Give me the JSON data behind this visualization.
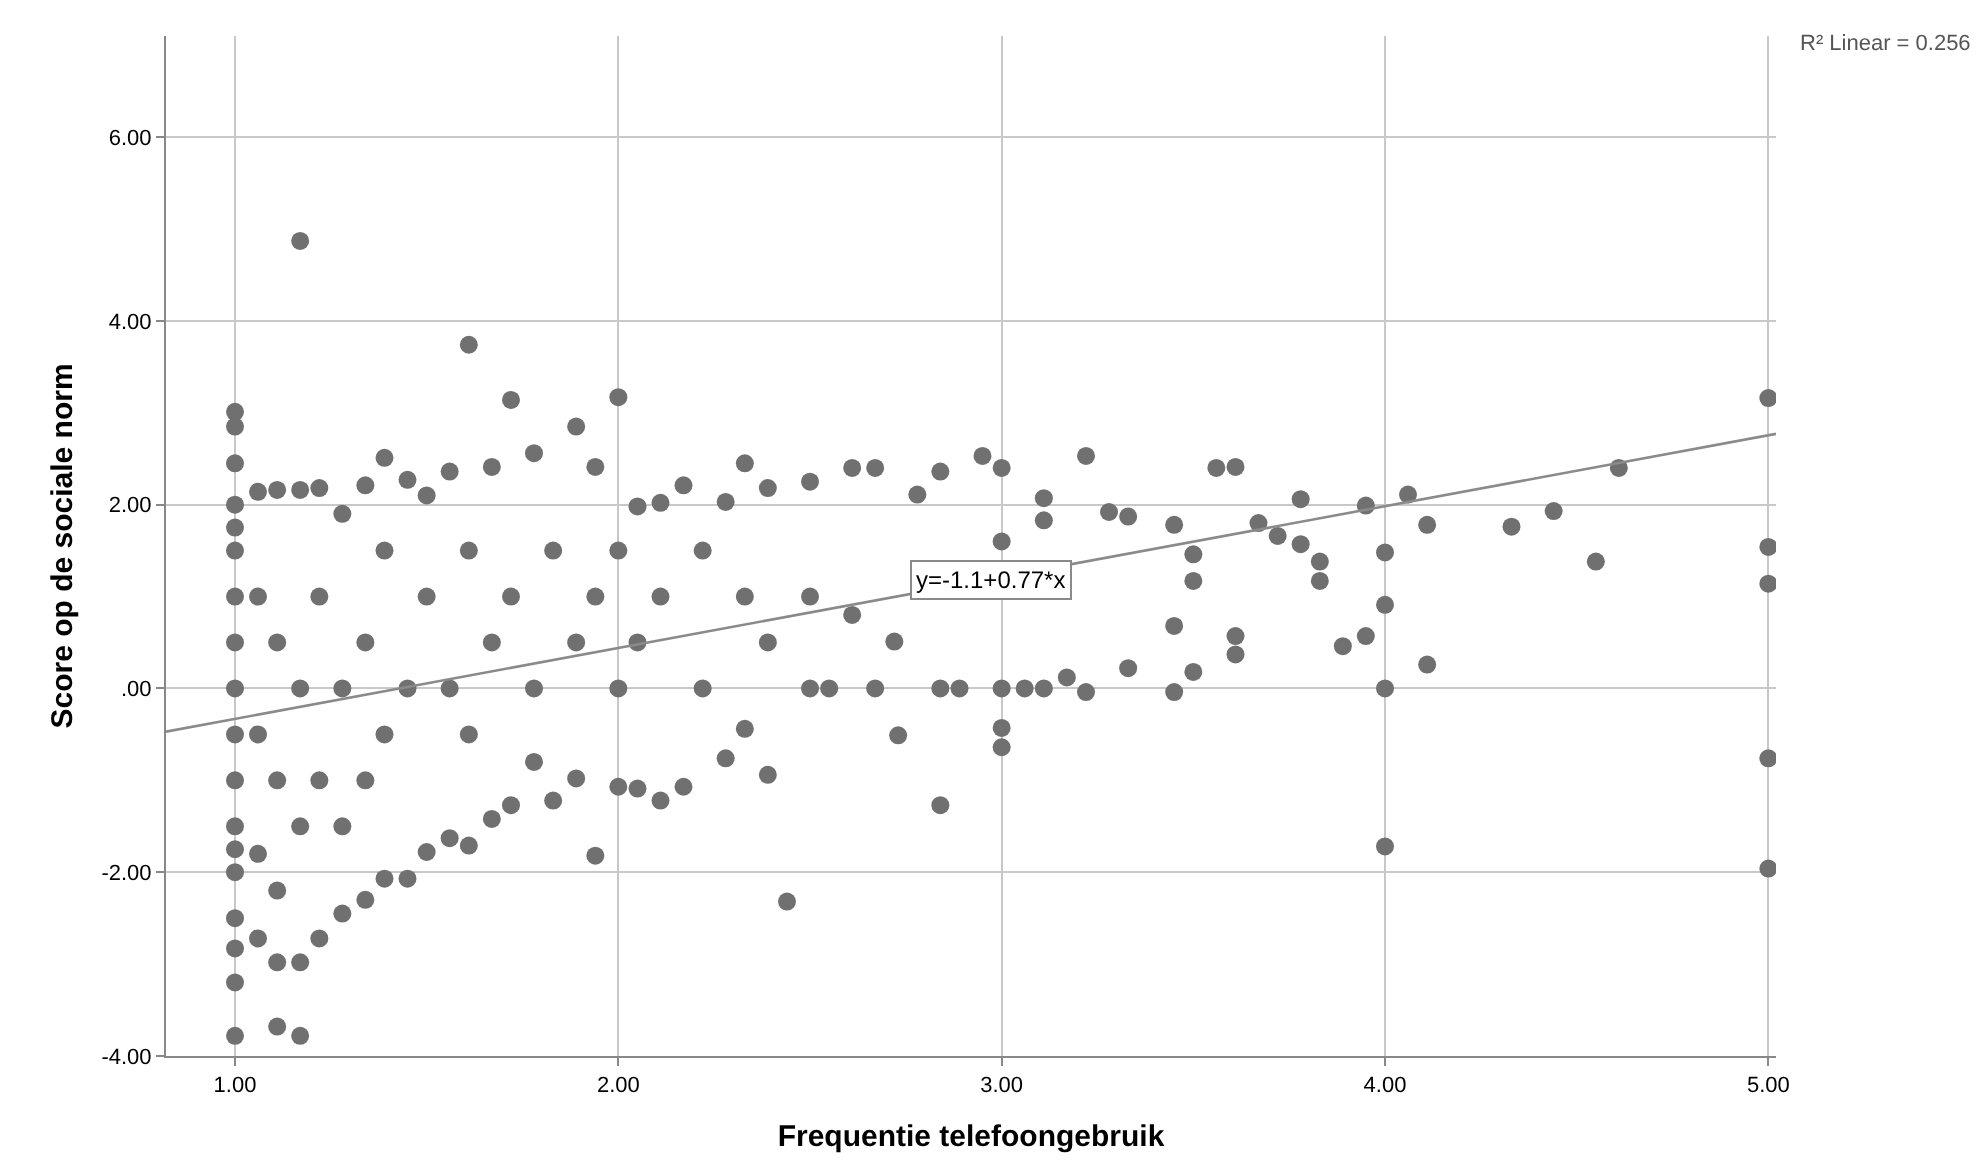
{
  "chart_data": {
    "type": "scatter",
    "xlabel": "Frequentie telefoongebruik",
    "ylabel": "Score op de sociale norm",
    "xlim": [
      0.82,
      5.02
    ],
    "ylim": [
      -4,
      7.1
    ],
    "xticks": [
      {
        "value": 1,
        "label": "1.00"
      },
      {
        "value": 2,
        "label": "2.00"
      },
      {
        "value": 3,
        "label": "3.00"
      },
      {
        "value": 4,
        "label": "4.00"
      },
      {
        "value": 5,
        "label": "5.00"
      }
    ],
    "yticks": [
      {
        "value": -4,
        "label": "-4.00"
      },
      {
        "value": -2,
        "label": "-2.00"
      },
      {
        "value": 0,
        "label": ".00"
      },
      {
        "value": 2,
        "label": "2.00"
      },
      {
        "value": 4,
        "label": "4.00"
      },
      {
        "value": 6,
        "label": "6.00"
      }
    ],
    "grid": true,
    "series": [
      {
        "color": "#707070",
        "marker": "circle",
        "x": [
          1.0,
          1.0,
          1.0,
          1.0,
          1.0,
          1.0,
          1.0,
          1.0,
          1.0,
          1.0,
          1.0,
          1.0,
          1.0,
          1.0,
          1.0,
          1.0,
          1.0,
          1.0,
          1.06,
          1.06,
          1.06,
          1.06,
          1.06,
          1.11,
          1.11,
          1.11,
          1.11,
          1.11,
          1.11,
          1.17,
          1.17,
          1.17,
          1.17,
          1.17,
          1.17,
          1.22,
          1.22,
          1.22,
          1.22,
          1.28,
          1.28,
          1.28,
          1.28,
          1.34,
          1.34,
          1.34,
          1.34,
          1.39,
          1.39,
          1.39,
          1.39,
          1.45,
          1.45,
          1.45,
          1.5,
          1.5,
          1.5,
          1.56,
          1.56,
          1.56,
          1.61,
          1.61,
          1.61,
          1.61,
          1.67,
          1.67,
          1.67,
          1.72,
          1.72,
          1.72,
          1.78,
          1.78,
          1.78,
          1.83,
          1.83,
          1.89,
          1.89,
          1.89,
          1.94,
          1.94,
          1.94,
          2.0,
          2.0,
          2.0,
          2.0,
          2.05,
          2.05,
          2.05,
          2.11,
          2.11,
          2.11,
          2.17,
          2.17,
          2.22,
          2.22,
          2.28,
          2.28,
          2.33,
          2.33,
          2.33,
          2.39,
          2.39,
          2.39,
          2.44,
          2.5,
          2.5,
          2.5,
          2.55,
          2.61,
          2.61,
          2.67,
          2.67,
          2.72,
          2.73,
          2.78,
          2.84,
          2.84,
          2.84,
          2.89,
          2.95,
          3.0,
          3.0,
          3.0,
          3.0,
          3.0,
          3.06,
          3.11,
          3.11,
          3.11,
          3.17,
          3.22,
          3.22,
          3.28,
          3.33,
          3.33,
          3.45,
          3.45,
          3.45,
          3.5,
          3.5,
          3.5,
          3.56,
          3.61,
          3.61,
          3.61,
          3.67,
          3.72,
          3.78,
          3.78,
          3.83,
          3.83,
          3.89,
          3.95,
          3.95,
          4.0,
          4.0,
          4.0,
          4.0,
          4.06,
          4.11,
          4.11,
          4.33,
          4.44,
          4.55,
          4.61,
          5.0,
          5.0,
          5.0,
          5.0,
          5.0
        ],
        "values": [
          3.01,
          2.85,
          2.45,
          2.0,
          1.5,
          1.0,
          0.5,
          0.0,
          -0.5,
          -1.0,
          -1.5,
          -2.0,
          -2.5,
          -2.83,
          -3.2,
          -3.78,
          1.75,
          -1.75,
          2.14,
          1.0,
          -0.5,
          -1.8,
          -2.72,
          2.16,
          0.5,
          -1.0,
          -2.98,
          -3.68,
          -2.2,
          2.16,
          4.87,
          0.0,
          -2.98,
          -3.78,
          -1.5,
          2.18,
          1.0,
          -1.0,
          -2.72,
          1.9,
          0.0,
          -1.5,
          -2.45,
          2.21,
          0.5,
          -1.0,
          -2.3,
          2.51,
          1.5,
          -0.5,
          -2.07,
          2.27,
          0.0,
          -2.07,
          2.1,
          1.0,
          -1.78,
          2.36,
          0.0,
          -1.63,
          3.74,
          1.5,
          -0.5,
          -1.71,
          2.41,
          0.5,
          -1.42,
          3.14,
          1.0,
          -1.27,
          2.56,
          0.0,
          -0.8,
          1.5,
          -1.22,
          2.85,
          0.5,
          -0.98,
          2.41,
          1.0,
          -1.82,
          3.17,
          1.5,
          0.0,
          -1.07,
          1.98,
          0.5,
          -1.09,
          2.02,
          1.0,
          -1.22,
          2.21,
          -1.07,
          1.5,
          0.0,
          2.03,
          -0.76,
          2.45,
          1.0,
          -0.44,
          2.18,
          0.5,
          -0.94,
          -2.32,
          2.25,
          1.0,
          0.0,
          0.0,
          2.4,
          0.8,
          2.4,
          0.0,
          0.51,
          -0.51,
          2.11,
          2.36,
          0.0,
          -1.27,
          0.0,
          2.53,
          2.4,
          1.6,
          0.0,
          -0.43,
          -0.64,
          0.0,
          2.07,
          1.83,
          0.0,
          0.12,
          2.53,
          -0.04,
          1.92,
          1.87,
          0.22,
          1.78,
          0.68,
          -0.04,
          1.46,
          1.17,
          0.18,
          2.4,
          2.41,
          0.57,
          0.37,
          1.8,
          1.66,
          2.06,
          1.57,
          1.38,
          1.17,
          0.46,
          1.99,
          0.57,
          1.48,
          0.91,
          0.0,
          -1.72,
          2.11,
          1.78,
          0.26,
          1.76,
          1.93,
          1.38,
          2.4,
          3.16,
          1.54,
          1.14,
          -0.76,
          -1.96
        ]
      },
      {
        "type": "line",
        "color": "#8a8a8a",
        "marker": "none",
        "x": [
          0.82,
          5.02
        ],
        "values": [
          -0.47,
          2.77
        ]
      }
    ],
    "annotations": [
      {
        "text": "y=-1.1+0.77*x",
        "x": 2.97,
        "y": 1.17
      },
      "R² Linear = 0.256"
    ]
  }
}
